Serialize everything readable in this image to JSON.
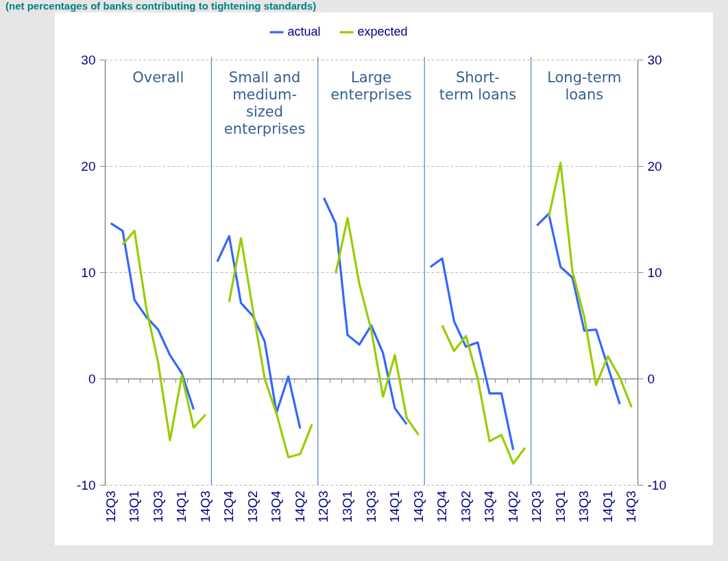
{
  "chart_data": {
    "type": "line",
    "title": "(net percentages of banks contributing to tightening standards)",
    "categories": [
      "12Q3",
      null,
      "13Q1",
      null,
      "13Q3",
      null,
      "14Q1",
      null,
      "14Q3",
      null,
      "12Q4",
      null,
      "13Q2",
      null,
      "13Q4",
      null,
      "14Q2",
      null,
      "12Q3",
      null,
      "13Q1",
      null,
      "13Q3",
      null,
      "14Q1",
      null,
      "14Q3",
      null,
      "12Q4",
      null,
      "13Q2",
      null,
      "13Q4",
      null,
      "14Q2",
      null,
      "12Q3",
      null,
      "13Q1",
      null,
      "13Q3",
      null,
      "14Q1",
      null,
      "14Q3"
    ],
    "series": [
      {
        "name": "actual",
        "color": "#3366ff",
        "values": [
          14.6,
          13.9,
          7.4,
          5.8,
          4.6,
          2.2,
          0.5,
          -2.9,
          null,
          11.0,
          13.4,
          7.1,
          5.9,
          3.5,
          -3.2,
          0.2,
          -4.7,
          null,
          17.0,
          14.6,
          4.1,
          3.2,
          5.0,
          2.4,
          -2.8,
          -4.3,
          null,
          10.5,
          11.3,
          5.4,
          3.0,
          3.4,
          -1.4,
          -1.4,
          -6.7,
          null,
          14.4,
          15.5,
          10.5,
          9.5,
          4.5,
          4.6,
          1.1,
          -2.4,
          null
        ]
      },
      {
        "name": "expected",
        "color": "#99cc00",
        "values": [
          null,
          12.6,
          13.9,
          6.6,
          1.5,
          -5.8,
          0.3,
          -4.6,
          -3.4,
          null,
          7.2,
          13.2,
          6.5,
          0.0,
          -3.3,
          -7.4,
          -7.1,
          -4.3,
          null,
          9.9,
          15.1,
          8.9,
          4.6,
          -1.7,
          2.2,
          -3.7,
          -5.3,
          null,
          5.0,
          2.6,
          4.0,
          0.0,
          -5.9,
          -5.3,
          -8.0,
          -6.5,
          null,
          15.2,
          20.3,
          10.1,
          5.8,
          -0.6,
          2.1,
          0.1,
          -2.7
        ]
      }
    ],
    "annotations": [
      "Overall",
      "Small and\nmedium-\nsized\nenterprises",
      "Large\nenterprises",
      "Short-\nterm loans",
      "Long-term\nloans"
    ],
    "ylim": [
      -10,
      30
    ],
    "yticks": [
      -10,
      0,
      10,
      20,
      30
    ],
    "y2lim": [
      -10,
      30
    ],
    "y2ticks": [
      -10,
      0,
      10,
      20,
      30
    ],
    "grid": "y",
    "legend": "top",
    "line_style": "solid",
    "marker": "none"
  }
}
